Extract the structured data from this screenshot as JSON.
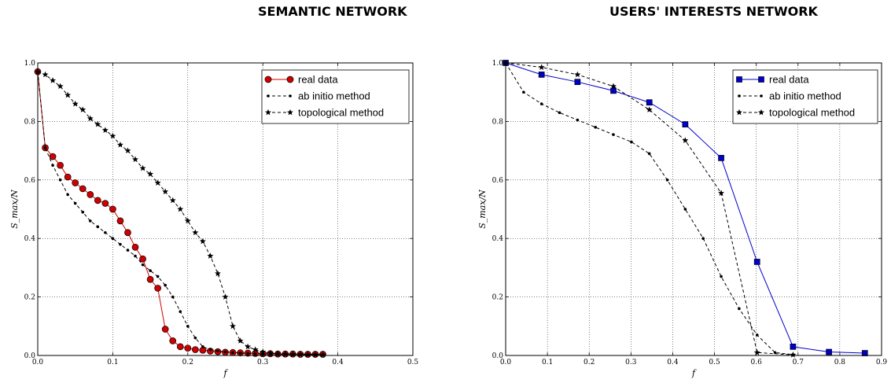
{
  "chart_data": [
    {
      "type": "line",
      "title": "SEMANTIC NETWORK",
      "xlabel": "f",
      "ylabel": "S_max/N",
      "xlim": [
        0.0,
        0.5
      ],
      "ylim": [
        0.0,
        1.0
      ],
      "xticks": [
        "0.0",
        "0.1",
        "0.2",
        "0.3",
        "0.4",
        "0.5"
      ],
      "yticks": [
        "0.0",
        "0.2",
        "0.4",
        "0.6",
        "0.8",
        "1.0"
      ],
      "grid": true,
      "legend_position": "top-right",
      "series": [
        {
          "name": "real data",
          "color": "#d00000",
          "marker": "circle",
          "linestyle": "solid",
          "x": [
            0.0,
            0.01,
            0.02,
            0.03,
            0.04,
            0.05,
            0.06,
            0.07,
            0.08,
            0.09,
            0.1,
            0.11,
            0.12,
            0.13,
            0.14,
            0.15,
            0.16,
            0.17,
            0.18,
            0.19,
            0.2,
            0.21,
            0.22,
            0.23,
            0.24,
            0.25,
            0.26,
            0.27,
            0.28,
            0.29,
            0.3,
            0.31,
            0.32,
            0.33,
            0.34,
            0.35,
            0.36,
            0.37,
            0.38
          ],
          "y": [
            0.97,
            0.71,
            0.68,
            0.65,
            0.61,
            0.59,
            0.57,
            0.55,
            0.53,
            0.52,
            0.5,
            0.46,
            0.42,
            0.37,
            0.33,
            0.26,
            0.23,
            0.09,
            0.05,
            0.03,
            0.025,
            0.02,
            0.018,
            0.015,
            0.013,
            0.011,
            0.01,
            0.009,
            0.008,
            0.007,
            0.006,
            0.006,
            0.005,
            0.005,
            0.005,
            0.004,
            0.004,
            0.004,
            0.004
          ]
        },
        {
          "name": "ab initio method",
          "color": "#000000",
          "marker": "dot",
          "linestyle": "dashed",
          "x": [
            0.0,
            0.01,
            0.02,
            0.03,
            0.04,
            0.05,
            0.06,
            0.07,
            0.08,
            0.09,
            0.1,
            0.11,
            0.12,
            0.13,
            0.14,
            0.15,
            0.16,
            0.17,
            0.18,
            0.19,
            0.2,
            0.21,
            0.22,
            0.23,
            0.24,
            0.25,
            0.26,
            0.27,
            0.28,
            0.29,
            0.3,
            0.31,
            0.32,
            0.33,
            0.34,
            0.35,
            0.36,
            0.37,
            0.38
          ],
          "y": [
            0.97,
            0.71,
            0.65,
            0.6,
            0.55,
            0.52,
            0.49,
            0.46,
            0.44,
            0.42,
            0.4,
            0.38,
            0.36,
            0.34,
            0.31,
            0.29,
            0.27,
            0.24,
            0.2,
            0.15,
            0.1,
            0.06,
            0.03,
            0.02,
            0.015,
            0.012,
            0.01,
            0.008,
            0.007,
            0.006,
            0.005,
            0.005,
            0.004,
            0.004,
            0.004,
            0.003,
            0.003,
            0.003,
            0.003
          ]
        },
        {
          "name": "topological method",
          "color": "#000000",
          "marker": "star",
          "linestyle": "dashed",
          "x": [
            0.0,
            0.01,
            0.02,
            0.03,
            0.04,
            0.05,
            0.06,
            0.07,
            0.08,
            0.09,
            0.1,
            0.11,
            0.12,
            0.13,
            0.14,
            0.15,
            0.16,
            0.17,
            0.18,
            0.19,
            0.2,
            0.21,
            0.22,
            0.23,
            0.24,
            0.25,
            0.26,
            0.27,
            0.28,
            0.29,
            0.3,
            0.31,
            0.32,
            0.33,
            0.34,
            0.35,
            0.36,
            0.37,
            0.38
          ],
          "y": [
            0.97,
            0.96,
            0.94,
            0.92,
            0.89,
            0.86,
            0.84,
            0.81,
            0.79,
            0.77,
            0.75,
            0.72,
            0.7,
            0.67,
            0.64,
            0.62,
            0.59,
            0.56,
            0.53,
            0.5,
            0.46,
            0.42,
            0.39,
            0.34,
            0.28,
            0.2,
            0.1,
            0.05,
            0.03,
            0.02,
            0.012,
            0.008,
            0.006,
            0.005,
            0.004,
            0.004,
            0.003,
            0.003,
            0.003
          ]
        }
      ]
    },
    {
      "type": "line",
      "title": "USERS' INTERESTS NETWORK",
      "xlabel": "f",
      "ylabel": "S_max/N",
      "xlim": [
        0.0,
        0.9
      ],
      "ylim": [
        0.0,
        1.0
      ],
      "xticks": [
        "0.0",
        "0.1",
        "0.2",
        "0.3",
        "0.4",
        "0.5",
        "0.6",
        "0.7",
        "0.8",
        "0.9"
      ],
      "yticks": [
        "0.0",
        "0.2",
        "0.4",
        "0.6",
        "0.8",
        "1.0"
      ],
      "grid": true,
      "legend_position": "top-right",
      "series": [
        {
          "name": "real data",
          "color": "#0000cc",
          "marker": "square",
          "linestyle": "solid",
          "x": [
            0.0,
            0.086,
            0.172,
            0.258,
            0.344,
            0.43,
            0.516,
            0.602,
            0.688,
            0.774,
            0.86
          ],
          "y": [
            1.0,
            0.96,
            0.935,
            0.905,
            0.865,
            0.79,
            0.675,
            0.32,
            0.03,
            0.012,
            0.008
          ]
        },
        {
          "name": "ab initio method",
          "color": "#000000",
          "marker": "dot",
          "linestyle": "dashed",
          "x": [
            0.0,
            0.043,
            0.086,
            0.129,
            0.172,
            0.215,
            0.258,
            0.301,
            0.344,
            0.387,
            0.43,
            0.473,
            0.516,
            0.559,
            0.602,
            0.645,
            0.688
          ],
          "y": [
            1.0,
            0.9,
            0.86,
            0.83,
            0.805,
            0.78,
            0.755,
            0.73,
            0.69,
            0.6,
            0.5,
            0.4,
            0.27,
            0.16,
            0.07,
            0.01,
            0.003
          ]
        },
        {
          "name": "topological method",
          "color": "#000000",
          "marker": "star",
          "linestyle": "dashed",
          "x": [
            0.0,
            0.086,
            0.172,
            0.258,
            0.344,
            0.43,
            0.516,
            0.602,
            0.688
          ],
          "y": [
            1.0,
            0.985,
            0.96,
            0.92,
            0.84,
            0.735,
            0.555,
            0.01,
            0.002
          ]
        }
      ]
    }
  ]
}
